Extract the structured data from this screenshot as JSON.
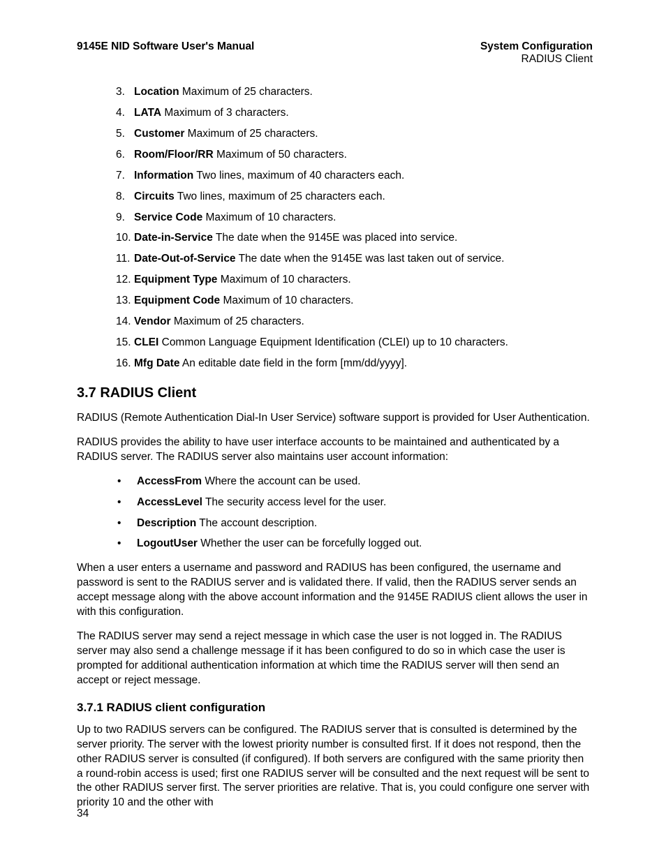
{
  "header": {
    "left": "9145E NID Software User's Manual",
    "right_top": "System Configuration",
    "right_sub": "RADIUS Client"
  },
  "ol_start": 3,
  "ol_items": [
    {
      "term": "Location",
      "desc": "Maximum of 25 characters."
    },
    {
      "term": "LATA",
      "desc": "Maximum of 3 characters."
    },
    {
      "term": "Customer",
      "desc": "Maximum of 25 characters."
    },
    {
      "term": "Room/Floor/RR",
      "desc": "Maximum of 50 characters."
    },
    {
      "term": "Information",
      "desc": "Two lines, maximum of 40 characters each."
    },
    {
      "term": "Circuits",
      "desc": "Two lines, maximum of 25 characters each."
    },
    {
      "term": "Service Code",
      "desc": "Maximum of 10 characters."
    },
    {
      "term": "Date-in-Service",
      "desc": "The date when the 9145E was placed into service."
    },
    {
      "term": "Date-Out-of-Service",
      "desc": "The date when the 9145E was last taken out of service."
    },
    {
      "term": "Equipment Type",
      "desc": "Maximum of 10 characters."
    },
    {
      "term": "Equipment Code",
      "desc": "Maximum of 10 characters."
    },
    {
      "term": "Vendor",
      "desc": "Maximum of 25 characters."
    },
    {
      "term": "CLEI",
      "desc": "Common Language Equipment Identification (CLEI) up to 10 characters."
    },
    {
      "term": "Mfg Date",
      "desc": "An editable date field in the form [mm/dd/yyyy]."
    }
  ],
  "section_heading": "3.7  RADIUS Client",
  "para1": "RADIUS (Remote Authentication Dial-In User Service) software support is provided for User Authentication.",
  "para2": "RADIUS provides the ability to have user interface accounts to be maintained and authenticated by a RADIUS server. The RADIUS server also maintains user account information:",
  "ul_items": [
    {
      "term": "AccessFrom",
      "desc": "Where the account can be used."
    },
    {
      "term": "AccessLevel",
      "desc": "The security access level for the user."
    },
    {
      "term": "Description",
      "desc": "The account description."
    },
    {
      "term": "LogoutUser",
      "desc": "Whether the user can be forcefully logged out."
    }
  ],
  "para3": "When a user enters a username and password and RADIUS has been configured, the username and password is sent to the RADIUS server and is validated there. If valid, then the RADIUS server sends an accept message along with the above account information and the 9145E RADIUS client allows the user in with this configuration.",
  "para4": "The RADIUS server may send a reject message in which case the user is not logged in. The RADIUS server may also send a challenge message if it has been configured to do so in which case the user is prompted for additional authentication information at which time the RADIUS server will then send an accept or reject message.",
  "subsection_heading": "3.7.1  RADIUS client configuration",
  "para5": "Up to two RADIUS servers can be configured. The RADIUS server that is consulted is determined by the server priority. The server with the lowest priority number is consulted first. If it does not respond, then the other RADIUS server is consulted (if configured). If both servers are configured with the same priority then a round-robin access is used; first one RADIUS server will be consulted and the next request will be sent to the other RADIUS server first. The server priorities are relative. That is, you could configure one server with priority 10 and the other with",
  "page_number": "34",
  "bullet_char": "•"
}
